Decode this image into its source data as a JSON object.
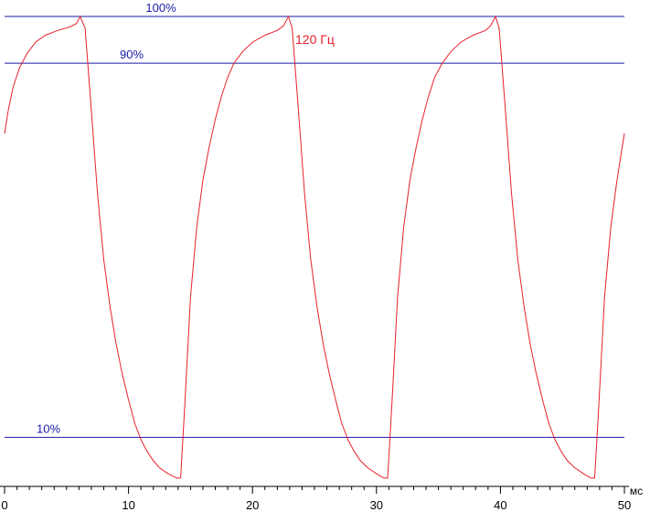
{
  "chart_data": {
    "type": "line",
    "title": "",
    "xlabel": "",
    "ylabel": "",
    "x_unit": "мс",
    "xlim": [
      0,
      50
    ],
    "ylim": [
      0,
      100
    ],
    "x_ticks": [
      0,
      10,
      20,
      30,
      40,
      50
    ],
    "x_tick_labels": [
      "0",
      "10",
      "20",
      "30",
      "40",
      "50"
    ],
    "y_axis_shown": false,
    "grid": false,
    "colors": {
      "series": "#e8202a",
      "reference": "#1a1aa8",
      "axis": "#000000"
    },
    "reference_lines": [
      {
        "value": 100,
        "label": "100%"
      },
      {
        "value": 90,
        "label": "90%"
      },
      {
        "value": 10,
        "label": "10%"
      }
    ],
    "series": [
      {
        "name": "120 Гц",
        "points": [
          [
            0.0,
            75.0
          ],
          [
            0.3,
            80.0
          ],
          [
            0.7,
            85.0
          ],
          [
            1.2,
            89.0
          ],
          [
            1.8,
            92.0
          ],
          [
            2.5,
            94.5
          ],
          [
            3.3,
            96.0
          ],
          [
            4.3,
            97.0
          ],
          [
            5.3,
            97.8
          ],
          [
            5.8,
            98.5
          ],
          [
            6.1,
            100.0
          ],
          [
            6.5,
            97.5
          ],
          [
            7.0,
            80.0
          ],
          [
            7.5,
            62.0
          ],
          [
            8.0,
            48.0
          ],
          [
            8.5,
            38.0
          ],
          [
            9.0,
            30.0
          ],
          [
            9.5,
            23.5
          ],
          [
            10.0,
            18.0
          ],
          [
            10.5,
            13.0
          ],
          [
            11.0,
            9.5
          ],
          [
            11.5,
            7.0
          ],
          [
            12.0,
            5.0
          ],
          [
            12.5,
            3.5
          ],
          [
            13.2,
            2.2
          ],
          [
            13.9,
            1.3
          ],
          [
            14.2,
            1.3
          ],
          [
            14.5,
            15.0
          ],
          [
            15.0,
            40.0
          ],
          [
            15.5,
            55.0
          ],
          [
            16.0,
            65.0
          ],
          [
            16.5,
            72.0
          ],
          [
            17.0,
            78.0
          ],
          [
            17.5,
            83.0
          ],
          [
            18.0,
            87.0
          ],
          [
            18.5,
            90.0
          ],
          [
            19.2,
            92.5
          ],
          [
            20.0,
            94.5
          ],
          [
            21.0,
            96.0
          ],
          [
            22.0,
            97.0
          ],
          [
            22.5,
            98.0
          ],
          [
            22.9,
            100.0
          ],
          [
            23.2,
            97.5
          ],
          [
            23.7,
            80.0
          ],
          [
            24.2,
            62.0
          ],
          [
            24.7,
            48.0
          ],
          [
            25.2,
            38.0
          ],
          [
            25.7,
            30.0
          ],
          [
            26.2,
            23.5
          ],
          [
            26.7,
            18.0
          ],
          [
            27.2,
            13.0
          ],
          [
            27.7,
            9.5
          ],
          [
            28.2,
            7.0
          ],
          [
            28.7,
            5.0
          ],
          [
            29.3,
            3.5
          ],
          [
            30.0,
            2.2
          ],
          [
            30.6,
            1.3
          ],
          [
            30.9,
            1.3
          ],
          [
            31.2,
            15.0
          ],
          [
            31.7,
            40.0
          ],
          [
            32.2,
            55.0
          ],
          [
            32.7,
            65.0
          ],
          [
            33.2,
            72.0
          ],
          [
            33.7,
            78.0
          ],
          [
            34.2,
            83.0
          ],
          [
            34.7,
            87.0
          ],
          [
            35.3,
            90.0
          ],
          [
            36.0,
            92.5
          ],
          [
            36.8,
            94.5
          ],
          [
            37.8,
            96.0
          ],
          [
            38.8,
            97.0
          ],
          [
            39.2,
            98.0
          ],
          [
            39.6,
            100.0
          ],
          [
            39.9,
            97.5
          ],
          [
            40.4,
            80.0
          ],
          [
            40.9,
            62.0
          ],
          [
            41.4,
            48.0
          ],
          [
            41.9,
            38.0
          ],
          [
            42.4,
            30.0
          ],
          [
            42.9,
            23.5
          ],
          [
            43.4,
            18.0
          ],
          [
            43.9,
            13.0
          ],
          [
            44.4,
            9.5
          ],
          [
            44.9,
            7.0
          ],
          [
            45.4,
            5.0
          ],
          [
            46.0,
            3.5
          ],
          [
            46.7,
            2.2
          ],
          [
            47.3,
            1.3
          ],
          [
            47.6,
            1.3
          ],
          [
            47.9,
            15.0
          ],
          [
            48.4,
            40.0
          ],
          [
            48.9,
            55.0
          ],
          [
            49.4,
            65.0
          ],
          [
            49.7,
            70.0
          ],
          [
            50.0,
            75.0
          ]
        ]
      }
    ]
  }
}
